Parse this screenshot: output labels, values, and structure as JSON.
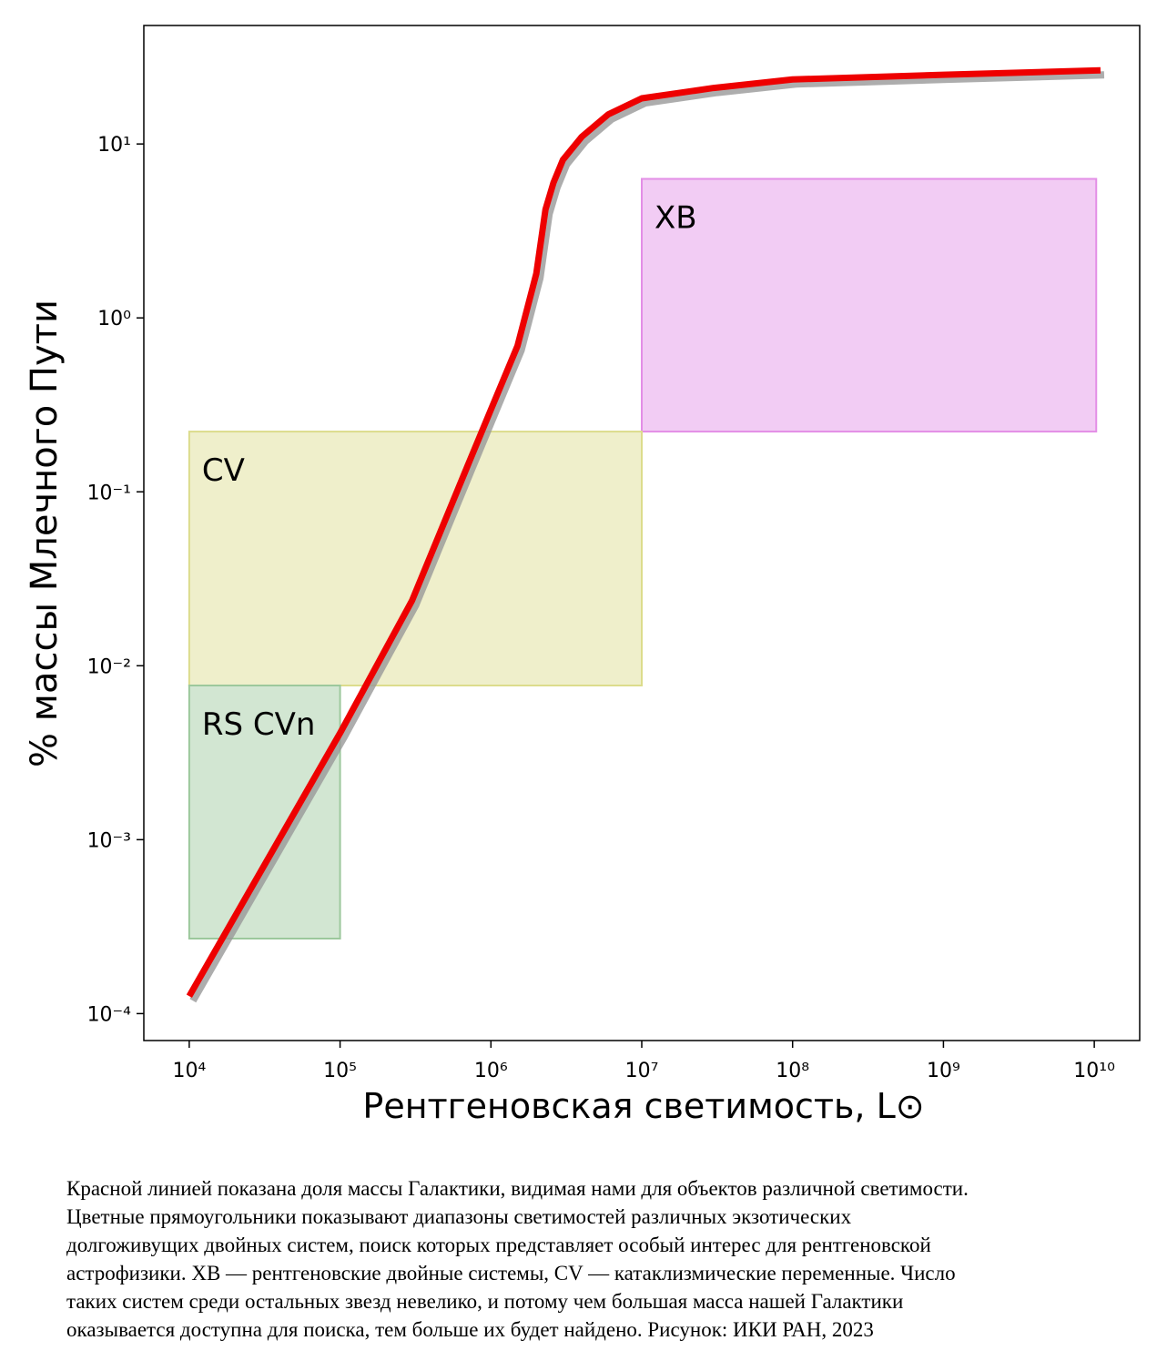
{
  "chart_data": {
    "type": "line",
    "x_label": "Рентгеновская светимость, L⊙",
    "y_label": "% массы Млечного Пути",
    "log_x": true,
    "log_y": true,
    "xlim": [
      5000,
      20000000000
    ],
    "ylim": [
      7e-05,
      48
    ],
    "xticks": [
      {
        "value": 10000,
        "label": "10⁴"
      },
      {
        "value": 100000,
        "label": "10⁵"
      },
      {
        "value": 1000000,
        "label": "10⁶"
      },
      {
        "value": 10000000,
        "label": "10⁷"
      },
      {
        "value": 100000000,
        "label": "10⁸"
      },
      {
        "value": 1000000000,
        "label": "10⁹"
      },
      {
        "value": 10000000000,
        "label": "10¹⁰"
      }
    ],
    "yticks": [
      {
        "value": 0.0001,
        "label": "10⁻⁴"
      },
      {
        "value": 0.001,
        "label": "10⁻³"
      },
      {
        "value": 0.01,
        "label": "10⁻²"
      },
      {
        "value": 0.1,
        "label": "10⁻¹"
      },
      {
        "value": 1,
        "label": "10⁰"
      },
      {
        "value": 10,
        "label": "10¹"
      }
    ],
    "regions": [
      {
        "name": "XB",
        "color": "#e38ee6",
        "x": [
          10000000,
          10300000000
        ],
        "y": [
          0.222,
          6.3
        ]
      },
      {
        "name": "CV",
        "color": "#dcdc8c",
        "x": [
          10000,
          10000000
        ],
        "y": [
          0.0077,
          0.222
        ]
      },
      {
        "name": "RS CVn",
        "color": "#9cc89c",
        "x": [
          10000,
          100000
        ],
        "y": [
          0.00027,
          0.0077
        ]
      }
    ],
    "series": [
      {
        "color": "#ee0000",
        "x": [
          10000,
          100000,
          300000,
          700000,
          1000000,
          1500000,
          2000000,
          2300000,
          2600000,
          3000000,
          4000000,
          6000000,
          10000000,
          30000000,
          100000000,
          1000000000,
          11000000000
        ],
        "values": [
          0.000126,
          0.0041,
          0.0237,
          0.141,
          0.297,
          0.69,
          1.8,
          4.2,
          6.0,
          8.1,
          11,
          14.8,
          18.3,
          21,
          23.5,
          25,
          26.5
        ]
      }
    ]
  },
  "caption": [
    "Красной линией показана доля массы Галактики, видимая нами для объектов различной светимости.",
    "Цветные прямоугольники показывают диапазоны светимостей различных экзотических",
    "долгоживущих двойных систем, поиск которых представляет особый интерес для рентгеновской",
    "астрофизики. XB — рентгеновские двойные системы, CV — катаклизмические переменные. Число",
    "таких систем среди остальных звезд невелико, и потому чем большая масса нашей Галактики",
    "оказывается доступна для поиска, тем больше их будет найдено. Рисунок: ИКИ РАН, 2023"
  ]
}
